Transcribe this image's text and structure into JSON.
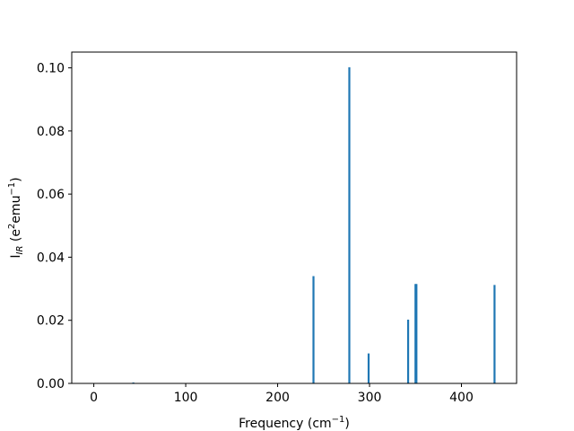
{
  "chart_data": {
    "type": "bar",
    "title": "",
    "xlabel": {
      "main": "Frequency (cm",
      "sup": "−1",
      "close": ")"
    },
    "ylabel": {
      "main": "I",
      "sub": "IR",
      "open": " (e",
      "sup1": "2",
      "mid": "emu",
      "sup2": "−1",
      "close": ")"
    },
    "xlim": [
      -24,
      460
    ],
    "ylim": [
      0,
      0.105
    ],
    "xticks": [
      {
        "value": 0,
        "label": "0"
      },
      {
        "value": 100,
        "label": "100"
      },
      {
        "value": 200,
        "label": "200"
      },
      {
        "value": 300,
        "label": "300"
      },
      {
        "value": 400,
        "label": "400"
      }
    ],
    "yticks": [
      {
        "value": 0.0,
        "label": "0.00"
      },
      {
        "value": 0.02,
        "label": "0.02"
      },
      {
        "value": 0.04,
        "label": "0.04"
      },
      {
        "value": 0.06,
        "label": "0.06"
      },
      {
        "value": 0.08,
        "label": "0.08"
      },
      {
        "value": 0.1,
        "label": "0.10"
      }
    ],
    "grid": false,
    "series": [
      {
        "color": "#1f77b4",
        "x": [
          43,
          239,
          278,
          299,
          342,
          350,
          351,
          436
        ],
        "values": [
          0.0003,
          0.034,
          0.1002,
          0.0095,
          0.0202,
          0.0315,
          0.0315,
          0.0312
        ]
      }
    ]
  }
}
